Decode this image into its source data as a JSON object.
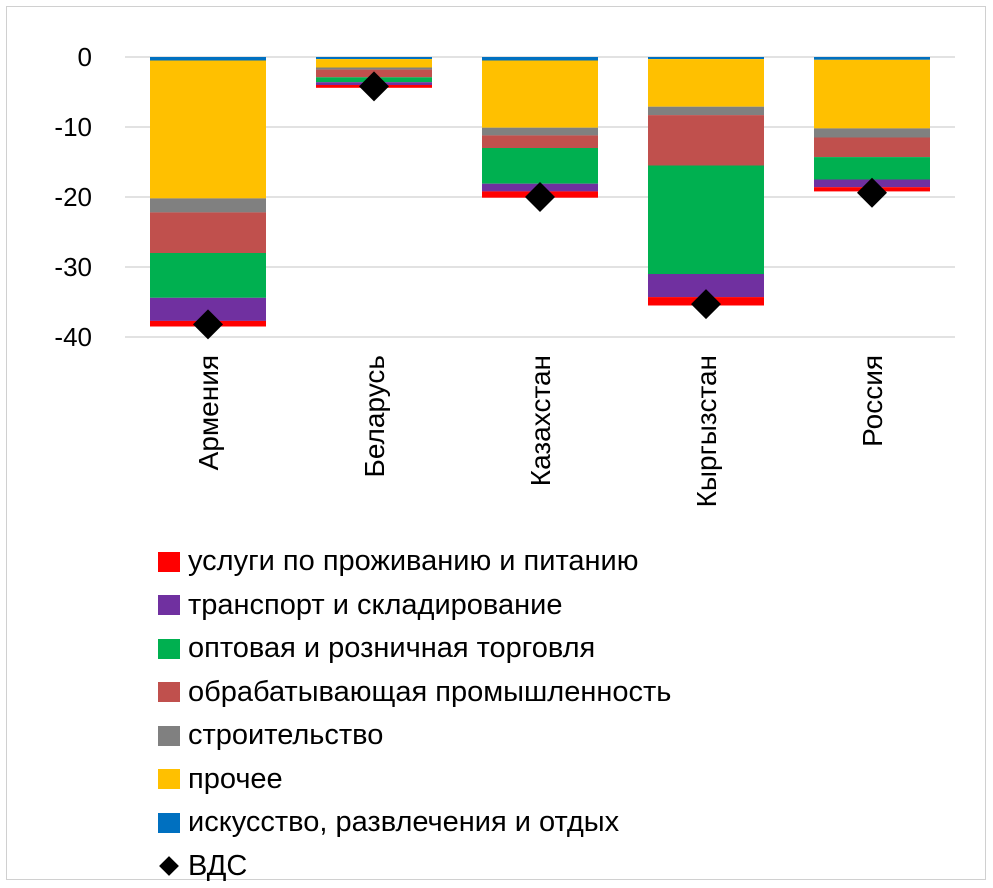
{
  "chart_data": {
    "type": "bar",
    "stacked": true,
    "categories": [
      "Армения",
      "Беларусь",
      "Казахстан",
      "Кыргызстан",
      "Россия"
    ],
    "ylim": [
      -40,
      0
    ],
    "yticks": [
      0,
      -10,
      -20,
      -30,
      -40
    ],
    "grid": true,
    "legend_position": "bottom",
    "series": [
      {
        "name": "искусство, развлечения и отдых",
        "color": "#0070C0",
        "values": [
          -0.5,
          -0.3,
          -0.5,
          -0.3,
          -0.4
        ]
      },
      {
        "name": "прочее",
        "color": "#FFC000",
        "values": [
          -19.7,
          -1.2,
          -9.6,
          -6.8,
          -9.8
        ]
      },
      {
        "name": "строительство",
        "color": "#808080",
        "values": [
          -2.0,
          -0.3,
          -1.1,
          -1.2,
          -1.3
        ]
      },
      {
        "name": "обрабатывающая промышленность",
        "color": "#C0504D",
        "values": [
          -5.8,
          -1.1,
          -1.8,
          -7.2,
          -2.8
        ]
      },
      {
        "name": "оптовая и розничная торговля",
        "color": "#00B050",
        "values": [
          -6.4,
          -0.7,
          -5.1,
          -15.5,
          -3.2
        ]
      },
      {
        "name": "транспорт и складирование",
        "color": "#7030A0",
        "values": [
          -3.3,
          -0.4,
          -1.1,
          -3.3,
          -1.1
        ]
      },
      {
        "name": "услуги по проживанию и питанию",
        "color": "#FF0000",
        "values": [
          -0.8,
          -0.4,
          -0.9,
          -1.2,
          -0.6
        ]
      }
    ],
    "markers": {
      "name": "ВДС",
      "shape": "diamond",
      "color": "#000000",
      "values": [
        -38.2,
        -4.2,
        -20.0,
        -35.3,
        -19.4
      ]
    }
  },
  "legend": {
    "items": [
      {
        "label": "услуги по проживанию и питанию",
        "color": "#FF0000",
        "icon": "square"
      },
      {
        "label": "транспорт и складирование",
        "color": "#7030A0",
        "icon": "square"
      },
      {
        "label": "оптовая и розничная торговля",
        "color": "#00B050",
        "icon": "square"
      },
      {
        "label": "обрабатывающая промышленность",
        "color": "#C0504D",
        "icon": "square"
      },
      {
        "label": "строительство",
        "color": "#808080",
        "icon": "square"
      },
      {
        "label": "прочее",
        "color": "#FFC000",
        "icon": "square"
      },
      {
        "label": "искусство, развлечения и отдых",
        "color": "#0070C0",
        "icon": "square"
      },
      {
        "label": "ВДС",
        "color": "#000000",
        "icon": "diamond"
      }
    ]
  }
}
